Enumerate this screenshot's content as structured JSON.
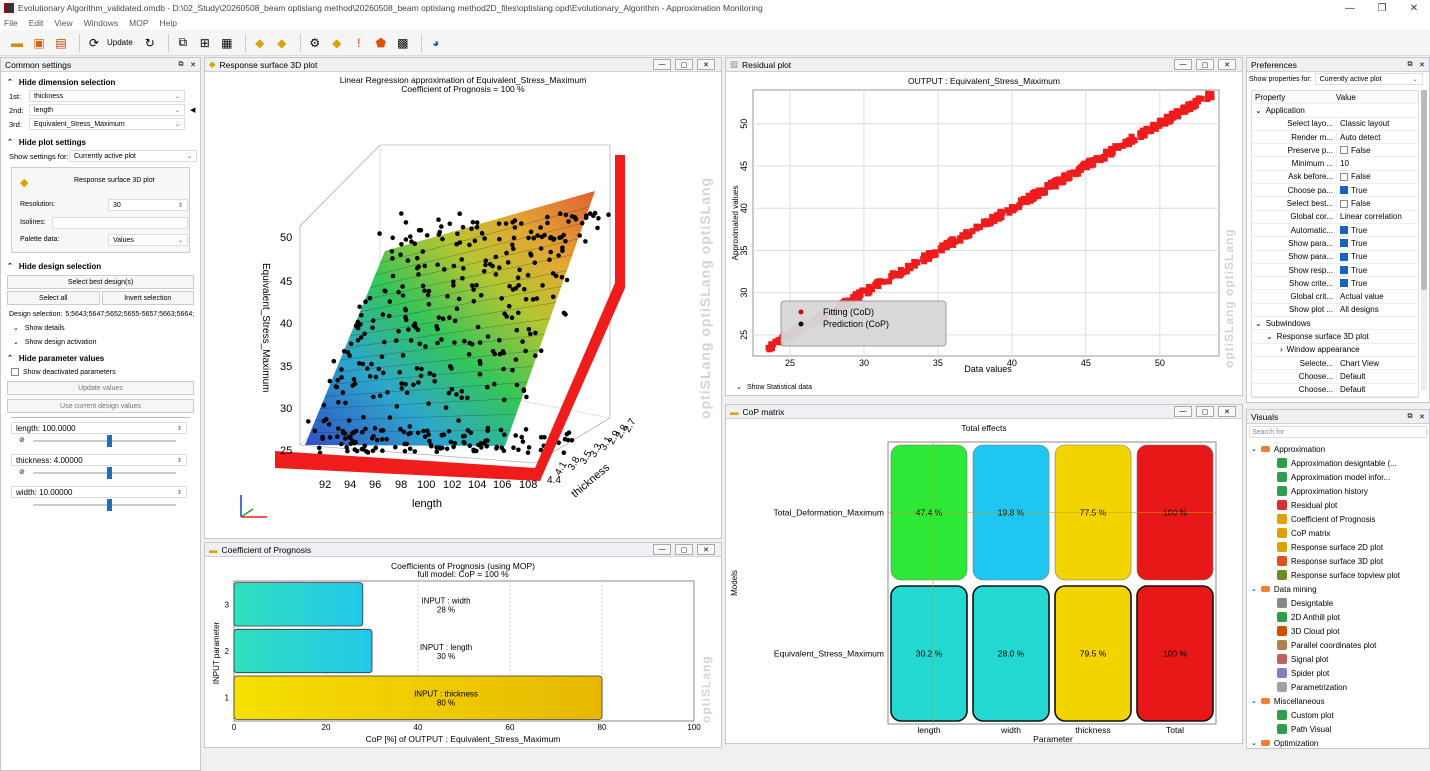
{
  "window": {
    "title": "Evolutionary Algorithm_validated.omdb - D:\\02_Study\\20260508_beam optislang method\\20260508_beam optislang method2D_files\\optislang.opd\\Evolutionary_Algorithm - Approximation Monitoring",
    "min": "—",
    "max": "❐",
    "close": "✕"
  },
  "menu": [
    "File",
    "Edit",
    "View",
    "Windows",
    "MOP",
    "Help"
  ],
  "toolbar": {
    "update_label": "Update"
  },
  "common": {
    "title": "Common settings",
    "dim_header": "Hide dimension selection",
    "dims": [
      {
        "label": "1st:",
        "value": "thickness"
      },
      {
        "label": "2nd:",
        "value": "length"
      },
      {
        "label": "3rd:",
        "value": "Equivalent_Stress_Maximum"
      }
    ],
    "plot_header": "Hide plot settings",
    "show_settings_label": "Show settings for:",
    "show_settings_value": "Currently active plot",
    "plot_name": "Response surface 3D plot",
    "resolution_label": "Resolution:",
    "resolution_value": "30",
    "isolines_label": "Isolines:",
    "palette_label": "Palette data:",
    "palette_value": "Values",
    "design_header": "Hide design selection",
    "select_best": "Select best design(s)",
    "select_all": "Select all",
    "invert": "Invert selection",
    "design_sel_label": "Design selection:",
    "design_sel_value": "5;5643;5647;5652;5655-5657;5663;5664;",
    "show_details": "Show details",
    "show_activation": "Show design activation",
    "param_header": "Hide parameter values",
    "show_deactivated": "Show deactivated parameters",
    "update_values": "Update values",
    "use_current": "Use current design values",
    "params": [
      {
        "label": "length: 100.0000",
        "pos": 0.5
      },
      {
        "label": "thickness: 4.00000",
        "pos": 0.5
      },
      {
        "label": "width: 10.00000",
        "pos": 0.5
      }
    ]
  },
  "rs3d": {
    "title": "Response surface 3D plot",
    "line1": "Linear Regression  approximation of Equivalent_Stress_Maximum",
    "line2": "Coefficient of Prognosis = 100 %",
    "zlabel": "Equivalent_Stress_Maximum",
    "xlabel": "length",
    "ylabel": "thickness",
    "zticks": [
      "50",
      "45",
      "40",
      "35",
      "30",
      "25"
    ],
    "xticks": [
      "92",
      "94",
      "96",
      "98",
      "100",
      "102",
      "104",
      "106",
      "108"
    ],
    "yticks": [
      "4.4",
      "4.1",
      "3.8",
      "3.5",
      "3.3",
      "3.1",
      "2.9",
      "2.8",
      "2.7"
    ]
  },
  "residual": {
    "title": "Residual plot",
    "plot_title": "OUTPUT : Equivalent_Stress_Maximum",
    "xlabel": "Data values",
    "ylabel": "Approximated values",
    "xticks": [
      "25",
      "30",
      "35",
      "40",
      "45",
      "50"
    ],
    "yticks": [
      "50",
      "45",
      "40",
      "35",
      "30",
      "25"
    ],
    "legend": [
      "Fitting (CoD)",
      "Prediction (CoP)"
    ],
    "stat": "Show Statistical data"
  },
  "cop": {
    "title": "Coefficient of Prognosis",
    "line1": "Coefficients of Prognosis (using MOP)",
    "line2": "full model: CoP = 100 %",
    "xlabel": "CoP [%] of OUTPUT : Equivalent_Stress_Maximum",
    "ylabel": "INPUT parameter",
    "xticks": [
      "0",
      "20",
      "40",
      "60",
      "80",
      "100"
    ],
    "yticks": [
      "3",
      "2",
      "1"
    ]
  },
  "copmatrix": {
    "title": "CoP matrix",
    "plot_title": "Total effects",
    "xlabel": "Parameter",
    "ylabel": "Models",
    "rows": [
      "Total_Deformation_Maximum",
      "Equivalent_Stress_Maximum"
    ],
    "cols": [
      "length",
      "width",
      "thickness",
      "Total"
    ]
  },
  "prefs": {
    "title": "Preferences",
    "show_for_label": "Show properties for:",
    "show_for_value": "Currently active plot",
    "col_prop": "Property",
    "col_val": "Value",
    "app_group": "Application",
    "rows": [
      {
        "k": "Select layo...",
        "v": "Classic layout",
        "chk": null
      },
      {
        "k": "Render m...",
        "v": "Auto detect",
        "chk": null
      },
      {
        "k": "Preserve p...",
        "v": "False",
        "chk": "off"
      },
      {
        "k": "Minimum ...",
        "v": "10",
        "chk": null
      },
      {
        "k": "Ask before...",
        "v": "False",
        "chk": "off"
      },
      {
        "k": "Choose pa...",
        "v": "True",
        "chk": "on"
      },
      {
        "k": "Select best...",
        "v": "False",
        "chk": "off"
      },
      {
        "k": "Global cor...",
        "v": "Linear correlation",
        "chk": null
      },
      {
        "k": "Automatic...",
        "v": "True",
        "chk": "on"
      },
      {
        "k": "Show para...",
        "v": "True",
        "chk": "on"
      },
      {
        "k": "Show para...",
        "v": "True",
        "chk": "on"
      },
      {
        "k": "Show resp...",
        "v": "True",
        "chk": "on"
      },
      {
        "k": "Show crite...",
        "v": "True",
        "chk": "on"
      },
      {
        "k": "Global crit...",
        "v": "Actual value",
        "chk": null
      },
      {
        "k": "Show plot ...",
        "v": "All designs",
        "chk": null
      }
    ],
    "sub_group": "Subwindows",
    "sub_item": "Response surface 3D plot",
    "win_app": "Window appearance",
    "tail": [
      {
        "k": "Selecte...",
        "v": "Chart View"
      },
      {
        "k": "Choose...",
        "v": "Default"
      },
      {
        "k": "Choose...",
        "v": "Default"
      }
    ]
  },
  "visuals": {
    "title": "Visuals",
    "search_placeholder": "Search for",
    "groups": [
      {
        "name": "Approximation",
        "items": [
          "Approximation designtable (...",
          "Approximation model infor...",
          "Approximation history",
          "Residual plot",
          "Coefficient of Prognosis",
          "CoP matrix",
          "Response surface 2D plot",
          "Response surface 3D plot",
          "Response surface topview plot"
        ]
      },
      {
        "name": "Data mining",
        "items": [
          "Designtable",
          "2D Anthill plot",
          "3D Cloud plot",
          "Parallel coordinates plot",
          "Signal plot",
          "Spider plot",
          "Parametrization"
        ]
      },
      {
        "name": "Miscellaneous",
        "items": [
          "Custom plot",
          "Path Visual"
        ]
      },
      {
        "name": "Optimization",
        "items": []
      }
    ]
  },
  "chart_data": [
    {
      "type": "bar",
      "title": "Coefficients of Prognosis (using MOP)",
      "subtitle": "full model: CoP = 100 %",
      "xlabel": "CoP [%] of OUTPUT : Equivalent_Stress_Maximum",
      "ylabel": "INPUT parameter",
      "xlim": [
        0,
        100
      ],
      "categories": [
        "INPUT : thickness",
        "INPUT : length",
        "INPUT : width"
      ],
      "values": [
        80,
        30,
        28
      ],
      "labels": [
        "80 %",
        "30 %",
        "28 %"
      ]
    },
    {
      "type": "heatmap",
      "title": "Total effects",
      "xlabel": "Parameter",
      "ylabel": "Models",
      "x": [
        "length",
        "width",
        "thickness",
        "Total"
      ],
      "y": [
        "Total_Deformation_Maximum",
        "Equivalent_Stress_Maximum"
      ],
      "values": [
        [
          47.4,
          19.8,
          77.5,
          100
        ],
        [
          30.2,
          28.0,
          79.5,
          100
        ]
      ],
      "labels": [
        [
          "47.4 %",
          "19.8 %",
          "77.5 %",
          "100 %"
        ],
        [
          "30.2 %",
          "28.0 %",
          "79.5 %",
          "100 %"
        ]
      ]
    },
    {
      "type": "scatter",
      "title": "OUTPUT : Equivalent_Stress_Maximum",
      "xlabel": "Data values",
      "ylabel": "Approximated values",
      "xlim": [
        22.5,
        54
      ],
      "ylim": [
        22.5,
        54
      ],
      "series": [
        {
          "name": "Fitting (CoD)"
        },
        {
          "name": "Prediction (CoP)"
        }
      ]
    }
  ]
}
